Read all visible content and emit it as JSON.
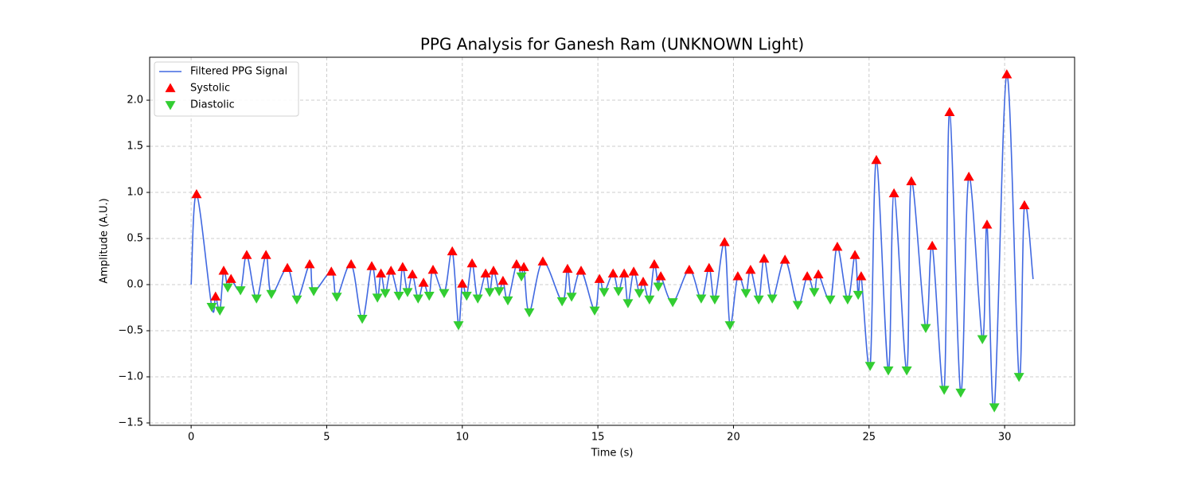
{
  "chart_data": {
    "type": "line",
    "title": "PPG Analysis for Ganesh Ram (UNKNOWN Light)",
    "x_label": "Time (s)",
    "y_label": "Amplitude (A.U.)",
    "xlim": [
      -1.53,
      32.58
    ],
    "ylim": [
      -1.526,
      2.466
    ],
    "xticks": [
      0,
      5,
      10,
      15,
      20,
      25,
      30
    ],
    "yticks": [
      {
        "value": -1.5,
        "label": "−1.5"
      },
      {
        "value": -1.0,
        "label": "−1.0"
      },
      {
        "value": -0.5,
        "label": "−0.5"
      },
      {
        "value": 0,
        "label": "0.0"
      },
      0.5,
      {
        "value": 1.0,
        "label": "1.0"
      },
      1.5,
      {
        "value": 2.0,
        "label": "2.0"
      }
    ],
    "grid": true,
    "legend": "upper left",
    "series": [
      {
        "name": "Filtered PPG Signal",
        "color": "#4169e1",
        "marker": "line",
        "x": [
          0,
          0.2,
          0.76,
          0.9,
          1.06,
          1.2,
          1.35,
          1.47,
          1.82,
          2.05,
          2.41,
          2.76,
          2.96,
          3.55,
          3.9,
          4.37,
          4.52,
          5.17,
          5.37,
          5.9,
          6.31,
          6.66,
          6.87,
          7.0,
          7.16,
          7.37,
          7.66,
          7.8,
          7.98,
          8.16,
          8.37,
          8.57,
          8.78,
          8.92,
          9.33,
          9.63,
          9.86,
          10.0,
          10.16,
          10.36,
          10.57,
          10.86,
          11.01,
          11.15,
          11.36,
          11.5,
          11.68,
          12.0,
          12.18,
          12.27,
          12.47,
          12.97,
          13.68,
          13.88,
          14.03,
          14.38,
          14.88,
          15.06,
          15.23,
          15.56,
          15.76,
          15.97,
          16.11,
          16.32,
          16.53,
          16.67,
          16.9,
          17.08,
          17.23,
          17.32,
          17.76,
          18.37,
          18.81,
          19.1,
          19.31,
          19.67,
          19.87,
          20.16,
          20.46,
          20.63,
          20.93,
          21.13,
          21.43,
          21.9,
          22.37,
          22.72,
          22.98,
          23.13,
          23.57,
          23.83,
          24.21,
          24.48,
          24.6,
          24.71,
          25.04,
          25.27,
          25.71,
          25.92,
          26.39,
          26.56,
          27.09,
          27.33,
          27.77,
          27.97,
          28.38,
          28.68,
          29.18,
          29.35,
          29.62,
          30.08,
          30.53,
          30.73,
          31.05
        ],
        "values": [
          0,
          0.98,
          -0.24,
          -0.13,
          -0.28,
          0.15,
          -0.03,
          0.06,
          -0.06,
          0.32,
          -0.15,
          0.32,
          -0.1,
          0.18,
          -0.16,
          0.22,
          -0.07,
          0.14,
          -0.13,
          0.22,
          -0.37,
          0.2,
          -0.14,
          0.12,
          -0.09,
          0.15,
          -0.12,
          0.19,
          -0.08,
          0.11,
          -0.15,
          0.02,
          -0.12,
          0.16,
          -0.09,
          0.36,
          -0.44,
          0.01,
          -0.12,
          0.23,
          -0.15,
          0.12,
          -0.08,
          0.15,
          -0.07,
          0.04,
          -0.17,
          0.22,
          0.09,
          0.19,
          -0.3,
          0.25,
          -0.18,
          0.17,
          -0.13,
          0.15,
          -0.28,
          0.06,
          -0.08,
          0.12,
          -0.07,
          0.12,
          -0.2,
          0.14,
          -0.09,
          0.03,
          -0.16,
          0.22,
          -0.02,
          0.09,
          -0.19,
          0.16,
          -0.15,
          0.18,
          -0.16,
          0.46,
          -0.44,
          0.09,
          -0.09,
          0.16,
          -0.16,
          0.28,
          -0.15,
          0.27,
          -0.22,
          0.09,
          -0.08,
          0.11,
          -0.16,
          0.41,
          -0.16,
          0.32,
          -0.11,
          0.09,
          -0.88,
          1.35,
          -0.93,
          0.99,
          -0.93,
          1.12,
          -0.47,
          0.42,
          -1.14,
          1.87,
          -1.17,
          1.17,
          -0.59,
          0.65,
          -1.33,
          2.28,
          -1.0,
          0.86,
          0.06
        ]
      },
      {
        "name": "Systolic",
        "color": "#ff0000",
        "marker": "triangle-up",
        "x": [
          0.2,
          0.9,
          1.2,
          1.47,
          2.05,
          2.76,
          3.55,
          4.37,
          5.17,
          5.9,
          6.66,
          7.0,
          7.37,
          7.8,
          8.16,
          8.57,
          8.92,
          9.63,
          10.0,
          10.36,
          10.86,
          11.15,
          11.5,
          12.0,
          12.27,
          12.97,
          13.88,
          14.38,
          15.06,
          15.56,
          15.97,
          16.32,
          16.67,
          17.08,
          17.32,
          18.37,
          19.1,
          19.67,
          20.16,
          20.63,
          21.13,
          21.9,
          22.72,
          23.13,
          23.83,
          24.48,
          24.71,
          25.27,
          25.92,
          26.56,
          27.33,
          27.97,
          28.68,
          29.35,
          30.08,
          30.73
        ],
        "values": [
          0.98,
          -0.13,
          0.15,
          0.06,
          0.32,
          0.32,
          0.18,
          0.22,
          0.14,
          0.22,
          0.2,
          0.12,
          0.15,
          0.19,
          0.11,
          0.02,
          0.16,
          0.36,
          0.01,
          0.23,
          0.12,
          0.15,
          0.04,
          0.22,
          0.19,
          0.25,
          0.17,
          0.15,
          0.06,
          0.12,
          0.12,
          0.14,
          0.03,
          0.22,
          0.09,
          0.16,
          0.18,
          0.46,
          0.09,
          0.16,
          0.28,
          0.27,
          0.09,
          0.11,
          0.41,
          0.32,
          0.09,
          1.35,
          0.99,
          1.12,
          0.42,
          1.87,
          1.17,
          0.65,
          2.28,
          0.86
        ]
      },
      {
        "name": "Diastolic",
        "color": "#32cd32",
        "marker": "triangle-down",
        "x": [
          0.76,
          1.06,
          1.35,
          1.82,
          2.41,
          2.96,
          3.9,
          4.52,
          5.37,
          6.31,
          6.87,
          7.16,
          7.66,
          7.98,
          8.37,
          8.78,
          9.33,
          9.86,
          10.16,
          10.57,
          11.01,
          11.36,
          11.68,
          12.18,
          12.47,
          13.68,
          14.03,
          14.88,
          15.23,
          15.76,
          16.11,
          16.53,
          16.9,
          17.23,
          17.76,
          18.81,
          19.31,
          19.87,
          20.46,
          20.93,
          21.43,
          22.37,
          22.98,
          23.57,
          24.21,
          24.6,
          25.04,
          25.71,
          26.39,
          27.09,
          27.77,
          28.38,
          29.18,
          29.62,
          30.53
        ],
        "values": [
          -0.24,
          -0.28,
          -0.03,
          -0.06,
          -0.15,
          -0.1,
          -0.16,
          -0.07,
          -0.13,
          -0.37,
          -0.14,
          -0.09,
          -0.12,
          -0.08,
          -0.15,
          -0.12,
          -0.09,
          -0.44,
          -0.12,
          -0.15,
          -0.08,
          -0.07,
          -0.17,
          0.09,
          -0.3,
          -0.18,
          -0.13,
          -0.28,
          -0.08,
          -0.07,
          -0.2,
          -0.09,
          -0.16,
          -0.02,
          -0.19,
          -0.15,
          -0.16,
          -0.44,
          -0.09,
          -0.16,
          -0.15,
          -0.22,
          -0.08,
          -0.16,
          -0.16,
          -0.11,
          -0.88,
          -0.93,
          -0.93,
          -0.47,
          -1.14,
          -1.17,
          -0.59,
          -1.33,
          -1.0
        ]
      }
    ]
  }
}
